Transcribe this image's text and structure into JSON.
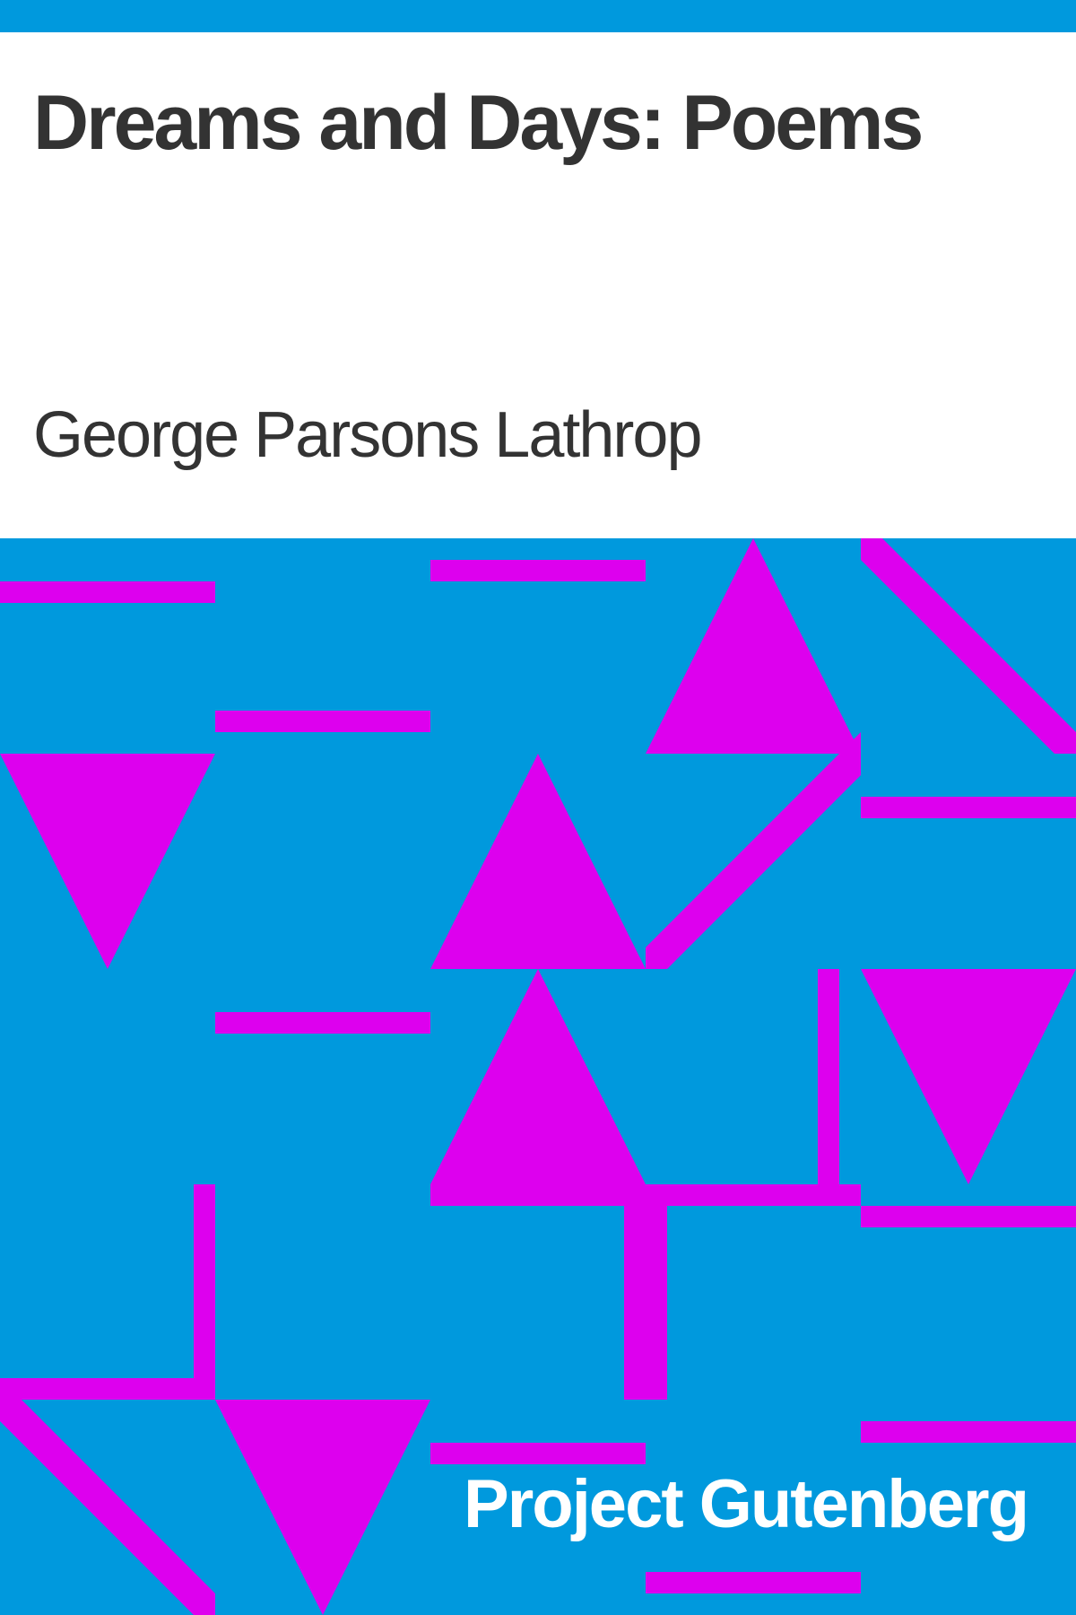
{
  "book": {
    "title": "Dreams and Days: Poems",
    "author": "George Parsons Lathrop"
  },
  "publisher": {
    "name": "Project Gutenberg"
  },
  "colors": {
    "background": "#ffffff",
    "stripe": "#0099dd",
    "pattern_background": "#0099dd",
    "pattern_shapes": "#dd00ee",
    "text": "#333333",
    "publisher_text": "#ffffff"
  }
}
